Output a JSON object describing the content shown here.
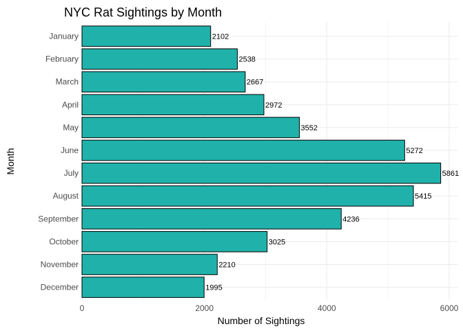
{
  "chart_data": {
    "type": "bar",
    "orientation": "horizontal",
    "title": "NYC Rat Sightings by Month",
    "xlabel": "Number of Sightings",
    "ylabel": "Month",
    "categories": [
      "January",
      "February",
      "March",
      "April",
      "May",
      "June",
      "July",
      "August",
      "September",
      "October",
      "November",
      "December"
    ],
    "values": [
      2102,
      2538,
      2667,
      2972,
      3552,
      5272,
      5861,
      5415,
      4236,
      3025,
      2210,
      1995
    ],
    "xlim": [
      0,
      6000
    ],
    "xticks": [
      0,
      2000,
      4000,
      6000
    ],
    "grid": true,
    "legend": "none",
    "bar_color": "#20B2AA",
    "bar_outline": "#000000"
  }
}
